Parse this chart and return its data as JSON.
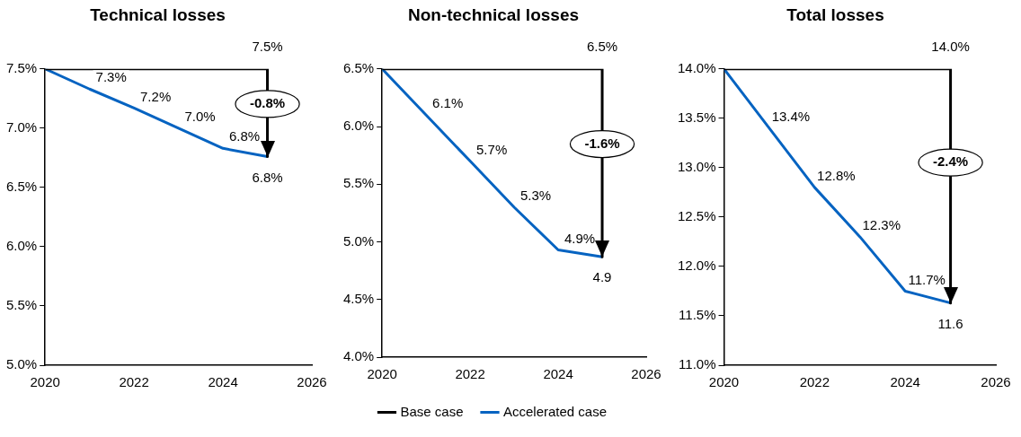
{
  "chart_data": [
    {
      "type": "line",
      "title": "Technical losses",
      "xlim": [
        2020,
        2026
      ],
      "xticks": [
        2020,
        2022,
        2024,
        2026
      ],
      "ylim": [
        5.0,
        7.5
      ],
      "yticks": [
        {
          "value": 5.0,
          "label": "5.0%"
        },
        {
          "value": 5.5,
          "label": "5.5%"
        },
        {
          "value": 6.0,
          "label": "6.0%"
        },
        {
          "value": 6.5,
          "label": "6.5%"
        },
        {
          "value": 7.0,
          "label": "7.0%"
        },
        {
          "value": 7.5,
          "label": "7.5%"
        }
      ],
      "grid": false,
      "legend": false,
      "marker": "none",
      "line_style": "solid",
      "series": [
        {
          "color": "#000000",
          "x": [
            2020,
            2025,
            2025
          ],
          "values": [
            7.5,
            7.5,
            6.76
          ],
          "value_labels": [
            null,
            "7.5%",
            null
          ]
        },
        {
          "color": "#0563c1",
          "x": [
            2020,
            2021,
            2022,
            2023,
            2024,
            2025
          ],
          "values": [
            7.5,
            7.33,
            7.17,
            7.0,
            6.83,
            6.76
          ],
          "value_labels": [
            null,
            "7.3%",
            "7.2%",
            "7.0%",
            "6.8%",
            "6.8%"
          ]
        }
      ],
      "annotations": [
        "-0.8%"
      ]
    },
    {
      "type": "line",
      "title": "Non-technical losses",
      "xlim": [
        2020,
        2026
      ],
      "xticks": [
        2020,
        2022,
        2024,
        2026
      ],
      "ylim": [
        4.0,
        6.5
      ],
      "yticks": [
        {
          "value": 4.0,
          "label": "4.0%"
        },
        {
          "value": 4.5,
          "label": "4.5%"
        },
        {
          "value": 5.0,
          "label": "5.0%"
        },
        {
          "value": 5.5,
          "label": "5.5%"
        },
        {
          "value": 6.0,
          "label": "6.0%"
        },
        {
          "value": 6.5,
          "label": "6.5%"
        }
      ],
      "grid": false,
      "legend": "bottom",
      "marker": "none",
      "line_style": "solid",
      "series": [
        {
          "name": "Base case",
          "color": "#000000",
          "x": [
            2020,
            2025,
            2025
          ],
          "values": [
            6.5,
            6.5,
            4.87
          ],
          "value_labels": [
            null,
            "6.5%",
            null
          ]
        },
        {
          "name": "Accelerated case",
          "color": "#0563c1",
          "x": [
            2020,
            2021,
            2022,
            2023,
            2024,
            2025
          ],
          "values": [
            6.5,
            6.1,
            5.7,
            5.3,
            4.93,
            4.87
          ],
          "value_labels": [
            null,
            "6.1%",
            "5.7%",
            "5.3%",
            "4.9%",
            "4.9"
          ]
        }
      ],
      "annotations": [
        "-1.6%"
      ]
    },
    {
      "type": "line",
      "title": "Total losses",
      "xlim": [
        2020,
        2026
      ],
      "xticks": [
        2020,
        2022,
        2024,
        2026
      ],
      "ylim": [
        11.0,
        14.0
      ],
      "yticks": [
        {
          "value": 11.0,
          "label": "11.0%"
        },
        {
          "value": 11.5,
          "label": "11.5%"
        },
        {
          "value": 12.0,
          "label": "12.0%"
        },
        {
          "value": 12.5,
          "label": "12.5%"
        },
        {
          "value": 13.0,
          "label": "13.0%"
        },
        {
          "value": 13.5,
          "label": "13.5%"
        },
        {
          "value": 14.0,
          "label": "14.0%"
        }
      ],
      "grid": false,
      "legend": false,
      "marker": "none",
      "line_style": "solid",
      "series": [
        {
          "color": "#000000",
          "x": [
            2020,
            2025,
            2025
          ],
          "values": [
            14.0,
            14.0,
            11.63
          ],
          "value_labels": [
            null,
            "14.0%",
            null
          ]
        },
        {
          "color": "#0563c1",
          "x": [
            2020,
            2021,
            2022,
            2023,
            2024,
            2025
          ],
          "values": [
            14.0,
            13.4,
            12.8,
            12.3,
            11.75,
            11.63
          ],
          "value_labels": [
            null,
            "13.4%",
            "12.8%",
            "12.3%",
            "11.7%",
            "11.6"
          ]
        }
      ],
      "annotations": [
        "-2.4%"
      ]
    }
  ]
}
